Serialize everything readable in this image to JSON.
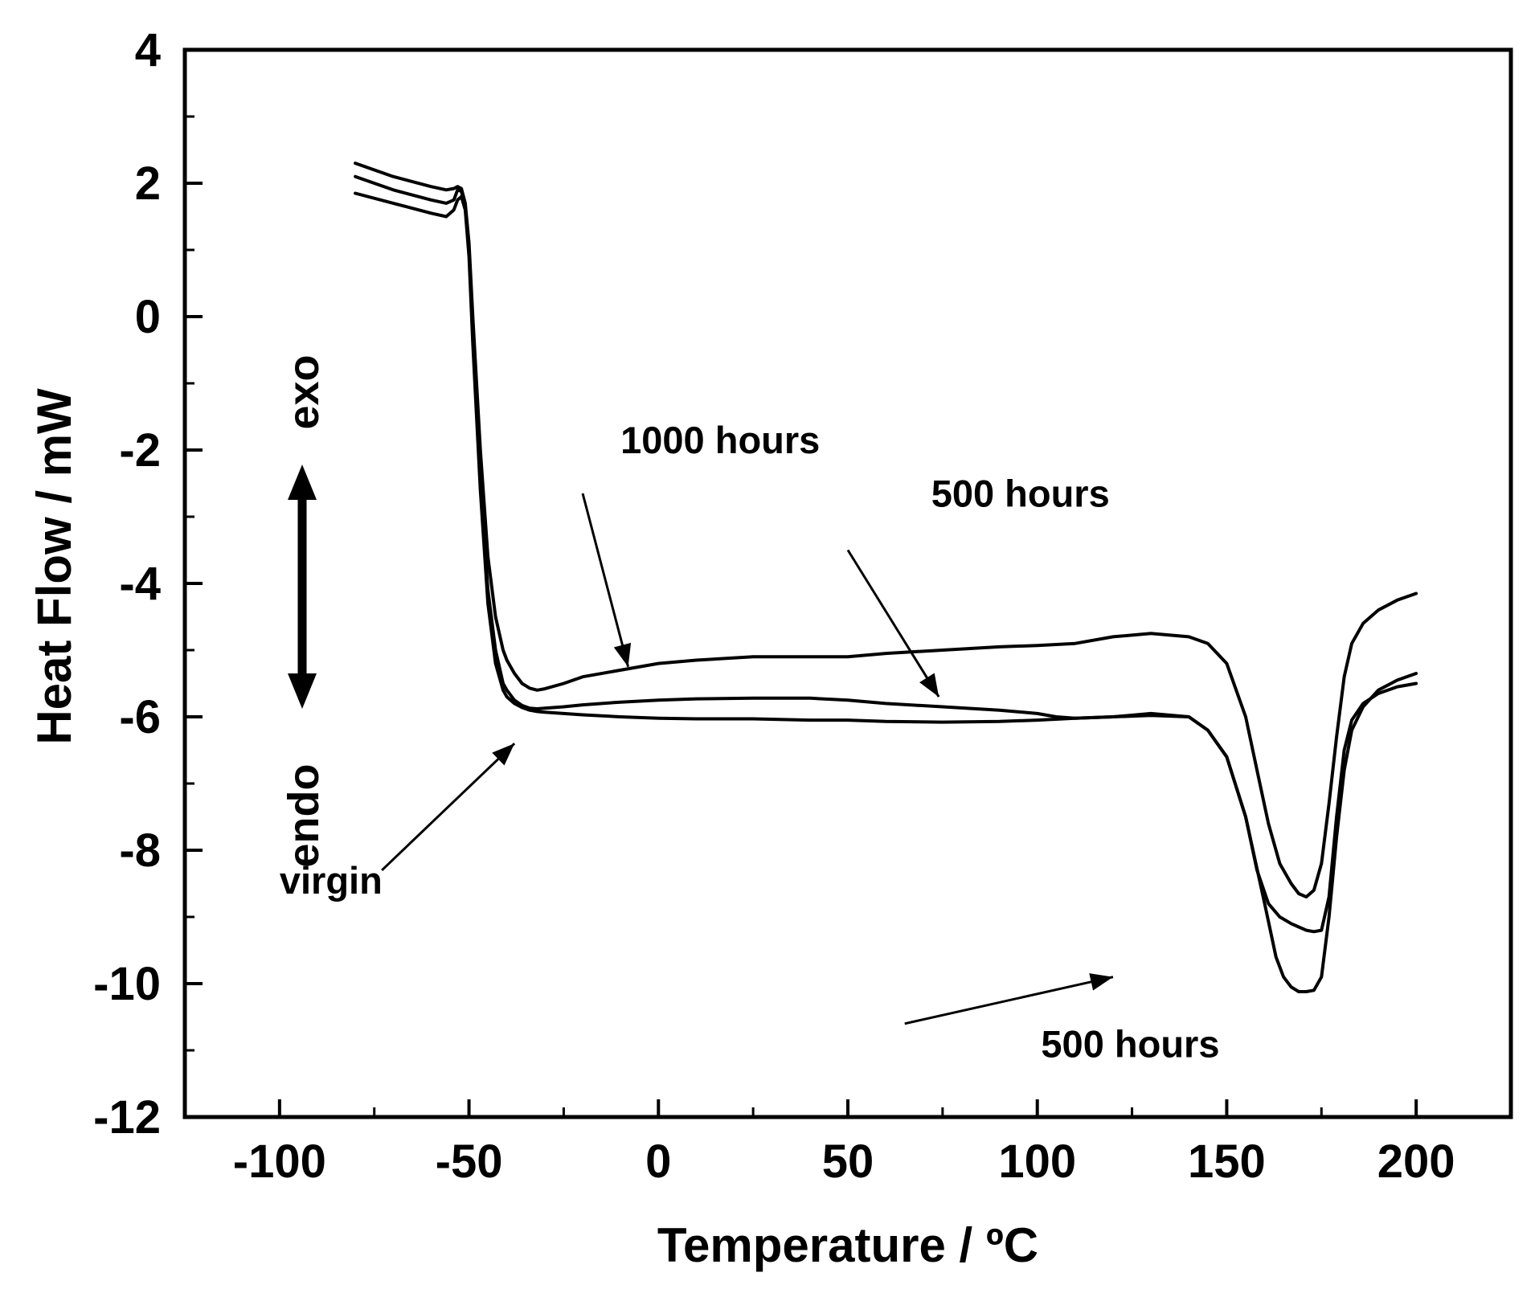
{
  "chart_data": {
    "type": "line",
    "title": "",
    "xlabel": "Temperature / ºC",
    "ylabel": "Heat Flow / mW",
    "xlim": [
      -125,
      225
    ],
    "ylim": [
      -12,
      4
    ],
    "xticks": [
      -100,
      -50,
      0,
      50,
      100,
      150,
      200
    ],
    "xtick_labels": [
      "-100",
      "-50",
      "0",
      "50",
      "100",
      "150",
      "200"
    ],
    "xminor": [
      -75,
      -25,
      25,
      75,
      125,
      175
    ],
    "yticks": [
      -12,
      -10,
      -8,
      -6,
      -4,
      -2,
      0,
      2,
      4
    ],
    "ytick_labels": [
      "-12",
      "-10",
      "-8",
      "-6",
      "-4",
      "-2",
      "0",
      "2",
      "4"
    ],
    "yminor": [
      -11,
      -9,
      -7,
      -5,
      -3,
      -1,
      1,
      3
    ],
    "series": [
      {
        "name": "1000 hours",
        "x": [
          -80,
          -70,
          -60,
          -56,
          -54,
          -53,
          -52,
          -51,
          -50,
          -49,
          -47,
          -45,
          -43,
          -41,
          -40,
          -38,
          -36,
          -34,
          -32,
          -30,
          -25,
          -20,
          -10,
          0,
          10,
          25,
          40,
          50,
          60,
          75,
          90,
          100,
          110,
          120,
          130,
          140,
          145,
          150,
          155,
          158,
          161,
          164,
          167,
          169,
          171,
          173,
          175,
          177,
          179,
          181,
          183,
          186,
          190,
          195,
          200
        ],
        "y": [
          2.3,
          2.1,
          1.95,
          1.9,
          1.92,
          1.95,
          1.92,
          1.7,
          1.1,
          0.0,
          -2.0,
          -3.6,
          -4.5,
          -5.0,
          -5.15,
          -5.35,
          -5.5,
          -5.57,
          -5.6,
          -5.58,
          -5.5,
          -5.4,
          -5.3,
          -5.2,
          -5.15,
          -5.1,
          -5.1,
          -5.1,
          -5.05,
          -5.0,
          -4.95,
          -4.93,
          -4.9,
          -4.8,
          -4.75,
          -4.8,
          -4.9,
          -5.2,
          -6.0,
          -6.8,
          -7.6,
          -8.2,
          -8.5,
          -8.65,
          -8.7,
          -8.6,
          -8.2,
          -7.3,
          -6.3,
          -5.4,
          -4.9,
          -4.6,
          -4.4,
          -4.25,
          -4.15
        ]
      },
      {
        "name": "500 hours",
        "x": [
          -80,
          -70,
          -60,
          -56,
          -54,
          -53,
          -52,
          -51,
          -50,
          -49,
          -47,
          -45,
          -43,
          -41,
          -40,
          -38,
          -36,
          -34,
          -32,
          -30,
          -25,
          -20,
          -10,
          0,
          10,
          25,
          40,
          50,
          60,
          75,
          90,
          100,
          105,
          110,
          120,
          130,
          140,
          145,
          150,
          155,
          158,
          161,
          164,
          167,
          169,
          171,
          173,
          175,
          177,
          179,
          181,
          183,
          186,
          190,
          195,
          200
        ],
        "y": [
          2.1,
          1.9,
          1.75,
          1.7,
          1.75,
          1.9,
          1.88,
          1.65,
          1.0,
          -0.3,
          -2.5,
          -4.1,
          -5.0,
          -5.5,
          -5.6,
          -5.75,
          -5.83,
          -5.87,
          -5.88,
          -5.87,
          -5.85,
          -5.82,
          -5.78,
          -5.75,
          -5.73,
          -5.72,
          -5.72,
          -5.75,
          -5.8,
          -5.85,
          -5.9,
          -5.95,
          -6.0,
          -6.02,
          -6.0,
          -5.95,
          -6.0,
          -6.2,
          -6.6,
          -7.5,
          -8.3,
          -8.8,
          -9.0,
          -9.1,
          -9.15,
          -9.2,
          -9.22,
          -9.2,
          -8.7,
          -7.5,
          -6.5,
          -6.05,
          -5.8,
          -5.65,
          -5.55,
          -5.5
        ]
      },
      {
        "name": "virgin",
        "x": [
          -80,
          -70,
          -60,
          -56,
          -54,
          -53,
          -52,
          -51,
          -50,
          -49,
          -47,
          -45,
          -43,
          -41,
          -40,
          -38,
          -36,
          -34,
          -32,
          -30,
          -25,
          -20,
          -10,
          0,
          10,
          25,
          40,
          50,
          60,
          75,
          90,
          100,
          110,
          120,
          130,
          140,
          145,
          150,
          155,
          160,
          163,
          165,
          167,
          169,
          171,
          173,
          175,
          177,
          179,
          181,
          183,
          186,
          190,
          195,
          200
        ],
        "y": [
          1.85,
          1.7,
          1.55,
          1.5,
          1.6,
          1.75,
          1.8,
          1.6,
          0.9,
          -0.4,
          -2.6,
          -4.3,
          -5.2,
          -5.6,
          -5.7,
          -5.8,
          -5.86,
          -5.9,
          -5.92,
          -5.93,
          -5.95,
          -5.97,
          -6.0,
          -6.02,
          -6.03,
          -6.03,
          -6.05,
          -6.05,
          -6.07,
          -6.08,
          -6.07,
          -6.05,
          -6.02,
          -6.0,
          -5.98,
          -6.0,
          -6.2,
          -6.6,
          -7.5,
          -8.8,
          -9.6,
          -9.9,
          -10.05,
          -10.12,
          -10.12,
          -10.1,
          -9.9,
          -9.0,
          -7.8,
          -6.8,
          -6.2,
          -5.85,
          -5.6,
          -5.45,
          -5.35
        ]
      }
    ],
    "annotations": [
      {
        "text": "1000 hours",
        "anchor": [
          -10,
          -2.05
        ],
        "arrow_from": [
          -20,
          -2.65
        ],
        "arrow_to": [
          -8,
          -5.25
        ]
      },
      {
        "text": "500 hours",
        "anchor": [
          72,
          -2.85
        ],
        "arrow_from": [
          50,
          -3.5
        ],
        "arrow_to": [
          74,
          -5.7
        ]
      },
      {
        "text": "virgin",
        "anchor": [
          -100,
          -8.65
        ],
        "arrow_from": [
          -73,
          -8.3
        ],
        "arrow_to": [
          -38,
          -6.4
        ]
      },
      {
        "text": "500 hours",
        "anchor": [
          101,
          -11.1
        ],
        "arrow_from": [
          65,
          -10.6
        ],
        "arrow_to": [
          120,
          -9.9
        ]
      }
    ],
    "side_labels": {
      "exo": "exo",
      "endo": "endo"
    }
  }
}
